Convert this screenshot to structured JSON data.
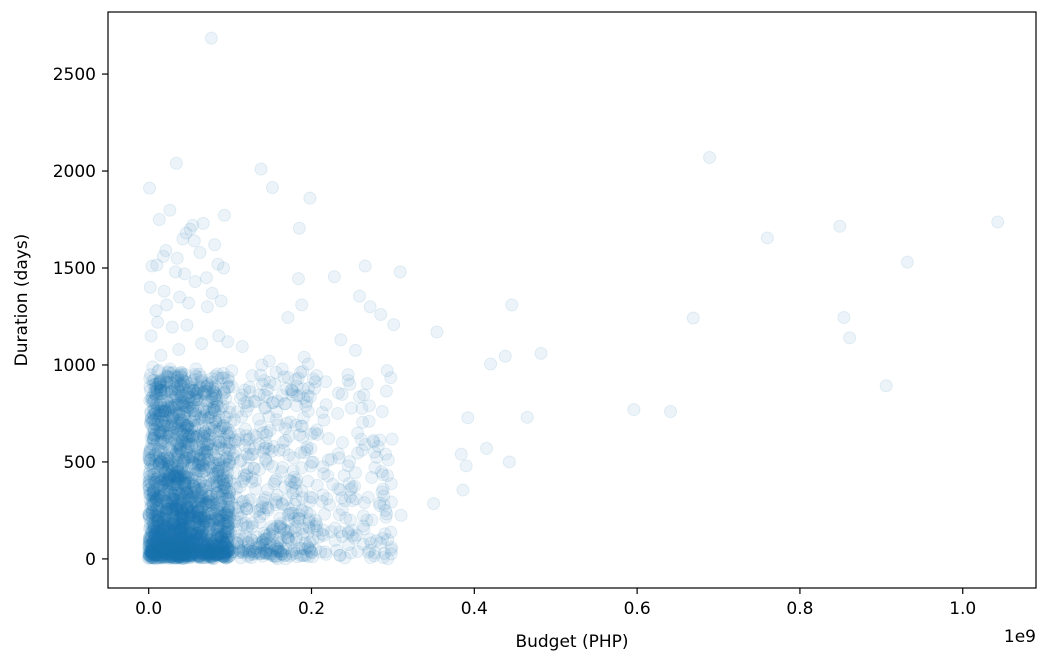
{
  "chart_data": {
    "type": "scatter",
    "title": "",
    "xlabel": "Budget (PHP)",
    "ylabel": "Duration (days)",
    "x_offset_text": "1e9",
    "xlim": [
      -0.05,
      1.09
    ],
    "ylim": [
      -150,
      2820
    ],
    "x_ticks": [
      0.0,
      0.2,
      0.4,
      0.6,
      0.8,
      1.0
    ],
    "x_tick_labels": [
      "0.0",
      "0.2",
      "0.4",
      "0.6",
      "0.8",
      "1.0"
    ],
    "y_ticks": [
      0,
      500,
      1000,
      1500,
      2000,
      2500
    ],
    "y_tick_labels": [
      "0",
      "500",
      "1000",
      "1500",
      "2000",
      "2500"
    ],
    "marker_color": "#1f77b4",
    "marker_alpha": 0.08,
    "grid": false,
    "legend": false,
    "points": [
      [
        0.077,
        2685
      ],
      [
        0.034,
        2040
      ],
      [
        0.689,
        2070
      ],
      [
        0.001,
        1912
      ],
      [
        0.138,
        2010
      ],
      [
        0.152,
        1915
      ],
      [
        0.198,
        1860
      ],
      [
        0.026,
        1798
      ],
      [
        0.013,
        1750
      ],
      [
        0.093,
        1772
      ],
      [
        0.067,
        1730
      ],
      [
        0.046,
        1680
      ],
      [
        0.051,
        1700
      ],
      [
        0.054,
        1720
      ],
      [
        0.185,
        1705
      ],
      [
        0.76,
        1655
      ],
      [
        0.849,
        1715
      ],
      [
        1.043,
        1737
      ],
      [
        0.021,
        1590
      ],
      [
        0.018,
        1560
      ],
      [
        0.056,
        1640
      ],
      [
        0.081,
        1620
      ],
      [
        0.063,
        1580
      ],
      [
        0.042,
        1650
      ],
      [
        0.004,
        1510
      ],
      [
        0.01,
        1515
      ],
      [
        0.035,
        1550
      ],
      [
        0.085,
        1520
      ],
      [
        0.092,
        1500
      ],
      [
        0.266,
        1510
      ],
      [
        0.309,
        1480
      ],
      [
        0.932,
        1530
      ],
      [
        0.033,
        1480
      ],
      [
        0.044,
        1470
      ],
      [
        0.057,
        1430
      ],
      [
        0.071,
        1450
      ],
      [
        0.184,
        1445
      ],
      [
        0.228,
        1455
      ],
      [
        0.002,
        1400
      ],
      [
        0.019,
        1380
      ],
      [
        0.038,
        1350
      ],
      [
        0.078,
        1370
      ],
      [
        0.259,
        1355
      ],
      [
        0.272,
        1300
      ],
      [
        0.072,
        1300
      ],
      [
        0.089,
        1330
      ],
      [
        0.446,
        1310
      ],
      [
        0.009,
        1280
      ],
      [
        0.022,
        1310
      ],
      [
        0.049,
        1320
      ],
      [
        0.188,
        1310
      ],
      [
        0.171,
        1245
      ],
      [
        0.285,
        1260
      ],
      [
        0.301,
        1208
      ],
      [
        0.354,
        1170
      ],
      [
        0.669,
        1242
      ],
      [
        0.854,
        1245
      ],
      [
        0.861,
        1140
      ],
      [
        0.011,
        1220
      ],
      [
        0.029,
        1195
      ],
      [
        0.047,
        1205
      ],
      [
        0.086,
        1150
      ],
      [
        0.097,
        1120
      ],
      [
        0.115,
        1095
      ],
      [
        0.236,
        1130
      ],
      [
        0.254,
        1075
      ],
      [
        0.003,
        1150
      ],
      [
        0.015,
        1050
      ],
      [
        0.037,
        1080
      ],
      [
        0.065,
        1110
      ],
      [
        0.139,
        1000
      ],
      [
        0.148,
        1020
      ],
      [
        0.191,
        1040
      ],
      [
        0.196,
        1005
      ],
      [
        0.42,
        1005
      ],
      [
        0.438,
        1045
      ],
      [
        0.482,
        1060
      ],
      [
        0.005,
        990
      ],
      [
        0.024,
        960
      ],
      [
        0.058,
        980
      ],
      [
        0.102,
        970
      ],
      [
        0.127,
        945
      ],
      [
        0.164,
        980
      ],
      [
        0.906,
        893
      ],
      [
        0.022,
        910
      ],
      [
        0.043,
        900
      ],
      [
        0.075,
        880
      ],
      [
        0.118,
        870
      ],
      [
        0.142,
        920
      ],
      [
        0.155,
        900
      ],
      [
        0.182,
        840
      ],
      [
        0.194,
        810
      ],
      [
        0.259,
        835
      ],
      [
        0.292,
        865
      ],
      [
        0.247,
        900
      ],
      [
        0.271,
        790
      ],
      [
        0.131,
        810
      ],
      [
        0.168,
        800
      ],
      [
        0.193,
        790
      ],
      [
        0.262,
        776
      ],
      [
        0.287,
        760
      ],
      [
        0.232,
        750
      ],
      [
        0.392,
        728
      ],
      [
        0.465,
        730
      ],
      [
        0.596,
        770
      ],
      [
        0.641,
        760
      ],
      [
        0.135,
        720
      ],
      [
        0.181,
        690
      ],
      [
        0.204,
        650
      ],
      [
        0.221,
        620
      ],
      [
        0.165,
        600
      ],
      [
        0.238,
        600
      ],
      [
        0.262,
        560
      ],
      [
        0.291,
        540
      ],
      [
        0.266,
        590
      ],
      [
        0.282,
        580
      ],
      [
        0.384,
        540
      ],
      [
        0.415,
        570
      ],
      [
        0.39,
        480
      ],
      [
        0.443,
        500
      ],
      [
        0.16,
        560
      ],
      [
        0.178,
        520
      ],
      [
        0.202,
        500
      ],
      [
        0.234,
        520
      ],
      [
        0.245,
        480
      ],
      [
        0.278,
        470
      ],
      [
        0.286,
        450
      ],
      [
        0.163,
        450
      ],
      [
        0.188,
        470
      ],
      [
        0.215,
        440
      ],
      [
        0.24,
        430
      ],
      [
        0.274,
        420
      ],
      [
        0.155,
        400
      ],
      [
        0.181,
        390
      ],
      [
        0.207,
        380
      ],
      [
        0.25,
        370
      ],
      [
        0.288,
        360
      ],
      [
        0.177,
        340
      ],
      [
        0.198,
        320
      ],
      [
        0.219,
        310
      ],
      [
        0.241,
        300
      ],
      [
        0.265,
        290
      ],
      [
        0.289,
        280
      ],
      [
        0.386,
        355
      ],
      [
        0.35,
        285
      ],
      [
        0.31,
        225
      ],
      [
        0.172,
        260
      ],
      [
        0.194,
        240
      ],
      [
        0.216,
        230
      ],
      [
        0.242,
        210
      ],
      [
        0.268,
        200
      ],
      [
        0.291,
        250
      ],
      [
        0.161,
        210
      ],
      [
        0.183,
        190
      ],
      [
        0.206,
        180
      ],
      [
        0.229,
        160
      ],
      [
        0.245,
        140
      ],
      [
        0.29,
        130
      ],
      [
        0.158,
        170
      ],
      [
        0.174,
        150
      ],
      [
        0.195,
        130
      ],
      [
        0.215,
        120
      ],
      [
        0.192,
        50
      ],
      [
        0.158,
        80
      ],
      [
        0.17,
        110
      ]
    ]
  }
}
